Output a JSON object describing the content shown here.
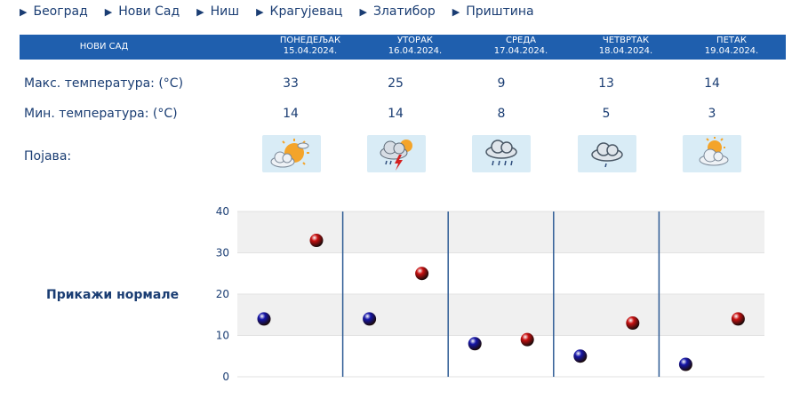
{
  "nav": {
    "cities": [
      "Београд",
      "Нови Сад",
      "Ниш",
      "Крагујевац",
      "Златибор",
      "Приштина"
    ]
  },
  "header": {
    "city": "НОВИ САД",
    "days": [
      {
        "name": "ПОНЕДЕЉАК",
        "date": "15.04.2024."
      },
      {
        "name": "УТОРАК",
        "date": "16.04.2024."
      },
      {
        "name": "СРЕДА",
        "date": "17.04.2024."
      },
      {
        "name": "ЧЕТВРТАК",
        "date": "18.04.2024."
      },
      {
        "name": "ПЕТАК",
        "date": "19.04.2024."
      }
    ]
  },
  "rows": {
    "max_label": "Макс. температура: (°C)",
    "min_label": "Мин. температура: (°C)",
    "phenomenon_label": "Појава:",
    "max": [
      "33",
      "25",
      "9",
      "13",
      "14"
    ],
    "min": [
      "14",
      "14",
      "8",
      "5",
      "3"
    ],
    "phenomenon_icons": [
      "sun-cloud-icon",
      "thunderstorm-icon",
      "rain-cloud-icon",
      "cloud-icon",
      "partly-cloudy-icon"
    ]
  },
  "normals_link": "Прикажи нормале",
  "colors": {
    "header_bg": "#1f5fae",
    "text": "#1a3d73",
    "min_marker": "#1515a8",
    "max_marker": "#c81010"
  },
  "chart_data": {
    "type": "scatter",
    "categories": [
      "ПОНЕДЕЉАК",
      "УТОРАК",
      "СРЕДА",
      "ЧЕТВРТАК",
      "ПЕТАК"
    ],
    "ylim": [
      0,
      40
    ],
    "yticks": [
      "0",
      "10",
      "20",
      "30",
      "40"
    ],
    "series": [
      {
        "values": [
          14,
          14,
          8,
          5,
          3
        ],
        "color": "#1515a8"
      },
      {
        "values": [
          33,
          25,
          9,
          13,
          14
        ],
        "color": "#c81010"
      }
    ]
  }
}
